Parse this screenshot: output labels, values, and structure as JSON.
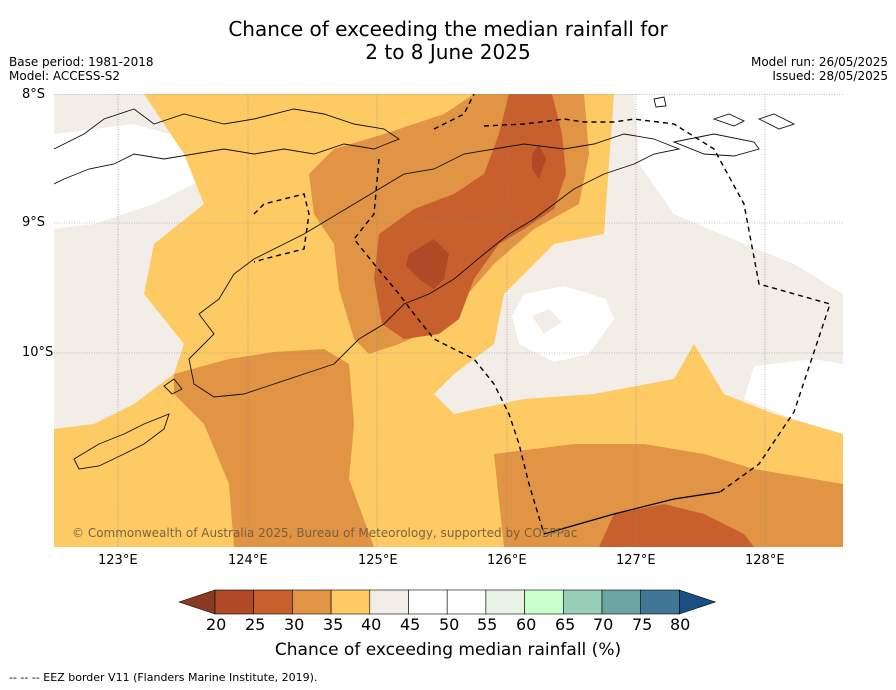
{
  "title": {
    "line1": "Chance of exceeding the median rainfall for",
    "line2": "2 to 8 June 2025"
  },
  "meta_left": {
    "base_period": "Base period: 1981-2018",
    "model": "Model: ACCESS-S2"
  },
  "meta_right": {
    "model_run": "Model run: 26/05/2025",
    "issued": "Issued: 28/05/2025"
  },
  "map": {
    "lat_labels": [
      "8°S",
      "9°S",
      "10°S"
    ],
    "lon_labels": [
      "123°E",
      "124°E",
      "125°E",
      "126°E",
      "127°E",
      "128°E"
    ],
    "copyright": "© Commonwealth of Australia 2025, Bureau of Meteorology, supported by COSPPac"
  },
  "colorbar": {
    "title": "Chance of exceeding median rainfall (%)",
    "ticks": [
      "20",
      "25",
      "30",
      "35",
      "40",
      "45",
      "50",
      "55",
      "60",
      "65",
      "70",
      "75",
      "80"
    ],
    "colors": [
      "#b04a26",
      "#c8602e",
      "#e09444",
      "#fdca63",
      "#f2ede7",
      "#ffffff",
      "#ffffff",
      "#e8f3e6",
      "#c9ffcc",
      "#98cdb7",
      "#6ca4a4",
      "#3f7794"
    ],
    "under_color": "#8a3a22",
    "over_color": "#1a4f83"
  },
  "footer": {
    "legend": "--  --  -- EEZ border V11 (Flanders Marine Institute, 2019)."
  }
}
